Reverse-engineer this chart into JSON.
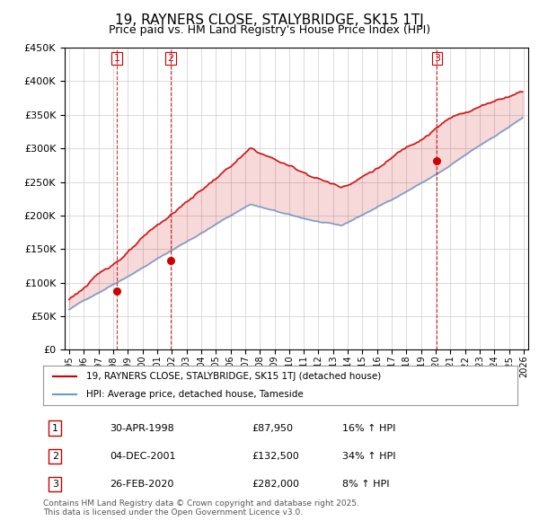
{
  "title": "19, RAYNERS CLOSE, STALYBRIDGE, SK15 1TJ",
  "subtitle": "Price paid vs. HM Land Registry's House Price Index (HPI)",
  "sale_dates": [
    "1998-04-30",
    "2001-12-04",
    "2020-02-26"
  ],
  "sale_prices": [
    87950,
    132500,
    282000
  ],
  "sale_labels": [
    "1",
    "2",
    "3"
  ],
  "sale_pct": [
    "16%",
    "34%",
    "8%"
  ],
  "legend_line1": "19, RAYNERS CLOSE, STALYBRIDGE, SK15 1TJ (detached house)",
  "legend_line2": "HPI: Average price, detached house, Tameside",
  "table_rows": [
    [
      "1",
      "30-APR-1998",
      "£87,950",
      "16% ↑ HPI"
    ],
    [
      "2",
      "04-DEC-2001",
      "£132,500",
      "34% ↑ HPI"
    ],
    [
      "3",
      "26-FEB-2020",
      "£282,000",
      "8% ↑ HPI"
    ]
  ],
  "footer": "Contains HM Land Registry data © Crown copyright and database right 2025.\nThis data is licensed under the Open Government Licence v3.0.",
  "line_color_red": "#cc0000",
  "line_color_blue": "#6699cc",
  "vline_color_red": "#cc0000",
  "grid_color": "#cccccc",
  "background_color": "#ffffff",
  "ylim": [
    0,
    450000
  ],
  "yticks": [
    0,
    50000,
    100000,
    150000,
    200000,
    250000,
    300000,
    350000,
    400000,
    450000
  ],
  "year_start": 1995,
  "year_end": 2026
}
